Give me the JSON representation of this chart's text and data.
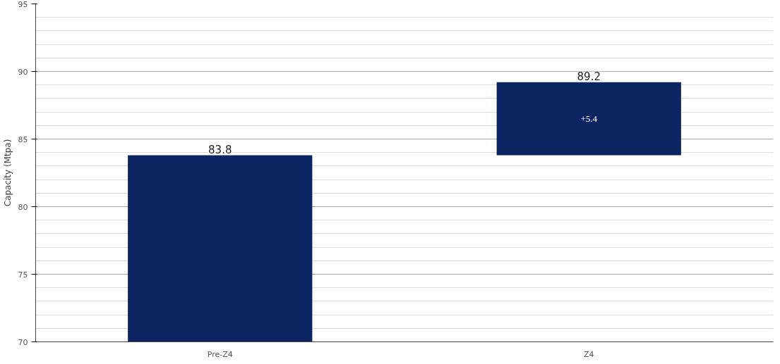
{
  "chart_data": {
    "type": "bar",
    "ylabel": "Capacity (Mtpa)",
    "categories": [
      "Pre-Z4",
      "Z4"
    ],
    "values": [
      13.8,
      5.4
    ],
    "base": [
      70,
      83.8
    ],
    "color": "#0c2461",
    "value_labels": [
      null,
      "+5.4"
    ],
    "annotations": [
      {
        "text": "83.8",
        "x": "Pre-Z4",
        "y": 83.8
      },
      {
        "text": "89.2",
        "x": "Z4",
        "y": 89.2
      }
    ],
    "ylim": [
      70,
      95
    ],
    "yticks": [
      70,
      75,
      80,
      85,
      90,
      95
    ],
    "grid": "y"
  }
}
